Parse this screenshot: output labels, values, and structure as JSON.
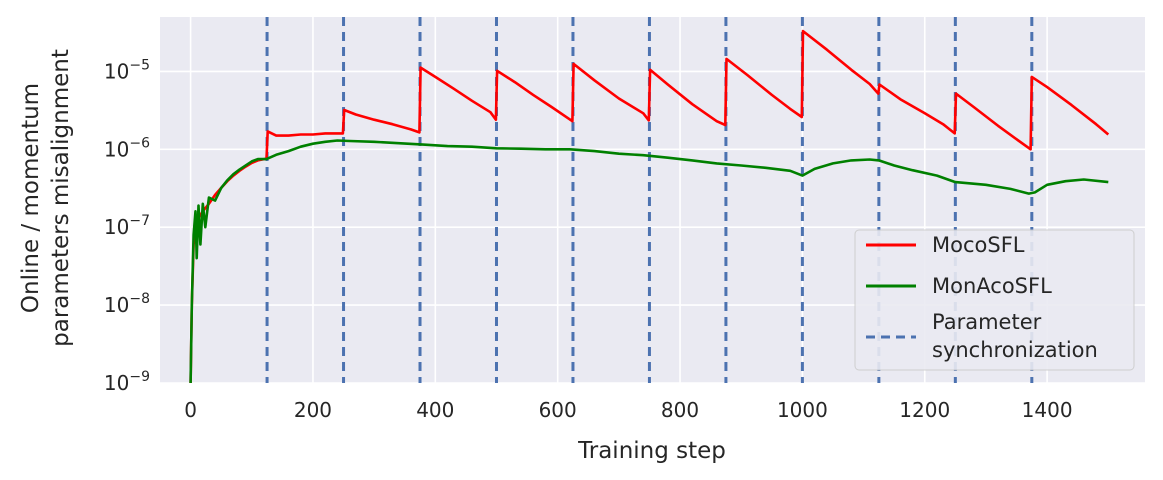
{
  "chart_data": {
    "type": "line",
    "title": "",
    "xlabel": "Training step",
    "ylabel_lines": [
      "Online / momentum",
      "parameters misalignment"
    ],
    "xlim": [
      -50,
      1560
    ],
    "ylim": [
      1e-09,
      5e-05
    ],
    "yscale": "log",
    "xticks": [
      0,
      200,
      400,
      600,
      800,
      1000,
      1200,
      1400
    ],
    "xtick_labels": [
      "0",
      "200",
      "400",
      "600",
      "800",
      "1000",
      "1200",
      "1400"
    ],
    "ytick_labels": [
      {
        "value": 1e-09,
        "base": "10",
        "exp": "−9"
      },
      {
        "value": 1e-08,
        "base": "10",
        "exp": "−8"
      },
      {
        "value": 1e-07,
        "base": "10",
        "exp": "−7"
      },
      {
        "value": 1e-06,
        "base": "10",
        "exp": "−6"
      },
      {
        "value": 1e-05,
        "base": "10",
        "exp": "−5"
      }
    ],
    "grid": true,
    "background": "#eaeaf2",
    "legend_position": "lower-right",
    "series": [
      {
        "name": "MocoSFL",
        "color": "#ff0000",
        "points": [
          [
            0,
            1e-09
          ],
          [
            2,
            1e-08
          ],
          [
            5,
            6e-08
          ],
          [
            10,
            1.2e-07
          ],
          [
            20,
            1.6e-07
          ],
          [
            30,
            2e-07
          ],
          [
            40,
            2.6e-07
          ],
          [
            50,
            3.2e-07
          ],
          [
            60,
            3.9e-07
          ],
          [
            70,
            4.6e-07
          ],
          [
            80,
            5.3e-07
          ],
          [
            90,
            6e-07
          ],
          [
            100,
            6.7e-07
          ],
          [
            110,
            7.2e-07
          ],
          [
            124,
            7.6e-07
          ],
          [
            126,
            1.7e-06
          ],
          [
            140,
            1.5e-06
          ],
          [
            160,
            1.5e-06
          ],
          [
            180,
            1.55e-06
          ],
          [
            200,
            1.55e-06
          ],
          [
            220,
            1.6e-06
          ],
          [
            240,
            1.6e-06
          ],
          [
            249,
            1.6e-06
          ],
          [
            251,
            3.2e-06
          ],
          [
            270,
            2.8e-06
          ],
          [
            300,
            2.4e-06
          ],
          [
            330,
            2.1e-06
          ],
          [
            360,
            1.8e-06
          ],
          [
            374,
            1.65e-06
          ],
          [
            376,
            1.12e-05
          ],
          [
            400,
            8.5e-06
          ],
          [
            430,
            6e-06
          ],
          [
            460,
            4.2e-06
          ],
          [
            490,
            3e-06
          ],
          [
            499,
            2.4e-06
          ],
          [
            501,
            1.02e-05
          ],
          [
            530,
            7.3e-06
          ],
          [
            560,
            5e-06
          ],
          [
            590,
            3.5e-06
          ],
          [
            624,
            2.3e-06
          ],
          [
            626,
            1.25e-05
          ],
          [
            660,
            7.7e-06
          ],
          [
            700,
            4.5e-06
          ],
          [
            740,
            2.9e-06
          ],
          [
            749,
            2.35e-06
          ],
          [
            751,
            1.05e-05
          ],
          [
            780,
            6.8e-06
          ],
          [
            820,
            3.8e-06
          ],
          [
            860,
            2.3e-06
          ],
          [
            874,
            2.05e-06
          ],
          [
            876,
            1.45e-05
          ],
          [
            910,
            9e-06
          ],
          [
            950,
            5e-06
          ],
          [
            980,
            3.3e-06
          ],
          [
            999,
            2.6e-06
          ],
          [
            1001,
            3.3e-05
          ],
          [
            1040,
            1.9e-05
          ],
          [
            1080,
            1.05e-05
          ],
          [
            1110,
            6.9e-06
          ],
          [
            1124,
            5.2e-06
          ],
          [
            1126,
            6.8e-06
          ],
          [
            1160,
            4.4e-06
          ],
          [
            1200,
            2.9e-06
          ],
          [
            1230,
            2.1e-06
          ],
          [
            1249,
            1.6e-06
          ],
          [
            1251,
            5.2e-06
          ],
          [
            1280,
            3.5e-06
          ],
          [
            1320,
            2e-06
          ],
          [
            1350,
            1.35e-06
          ],
          [
            1373,
            1e-06
          ],
          [
            1375,
            8.5e-06
          ],
          [
            1400,
            6.3e-06
          ],
          [
            1440,
            3.7e-06
          ],
          [
            1480,
            2.1e-06
          ],
          [
            1500,
            1.55e-06
          ]
        ]
      },
      {
        "name": "MonAcoSFL",
        "color": "#008000",
        "points": [
          [
            0,
            1e-09
          ],
          [
            2,
            1e-08
          ],
          [
            5,
            8e-08
          ],
          [
            8,
            1.6e-07
          ],
          [
            10,
            4e-08
          ],
          [
            13,
            1.9e-07
          ],
          [
            16,
            6e-08
          ],
          [
            20,
            2e-07
          ],
          [
            24,
            1e-07
          ],
          [
            30,
            2.4e-07
          ],
          [
            40,
            2.2e-07
          ],
          [
            50,
            3.2e-07
          ],
          [
            60,
            4e-07
          ],
          [
            70,
            4.8e-07
          ],
          [
            80,
            5.5e-07
          ],
          [
            90,
            6.2e-07
          ],
          [
            100,
            7e-07
          ],
          [
            110,
            7.5e-07
          ],
          [
            124,
            7.5e-07
          ],
          [
            140,
            8.5e-07
          ],
          [
            160,
            9.5e-07
          ],
          [
            180,
            1.08e-06
          ],
          [
            200,
            1.18e-06
          ],
          [
            220,
            1.25e-06
          ],
          [
            240,
            1.3e-06
          ],
          [
            260,
            1.28e-06
          ],
          [
            300,
            1.25e-06
          ],
          [
            340,
            1.2e-06
          ],
          [
            380,
            1.15e-06
          ],
          [
            420,
            1.1e-06
          ],
          [
            460,
            1.08e-06
          ],
          [
            500,
            1.03e-06
          ],
          [
            540,
            1.02e-06
          ],
          [
            580,
            1e-06
          ],
          [
            620,
            1e-06
          ],
          [
            660,
            9.5e-07
          ],
          [
            700,
            8.8e-07
          ],
          [
            740,
            8.4e-07
          ],
          [
            780,
            7.8e-07
          ],
          [
            820,
            7.2e-07
          ],
          [
            860,
            6.6e-07
          ],
          [
            900,
            6.2e-07
          ],
          [
            940,
            5.8e-07
          ],
          [
            980,
            5.3e-07
          ],
          [
            1000,
            4.6e-07
          ],
          [
            1020,
            5.6e-07
          ],
          [
            1050,
            6.6e-07
          ],
          [
            1080,
            7.2e-07
          ],
          [
            1110,
            7.4e-07
          ],
          [
            1125,
            7.2e-07
          ],
          [
            1150,
            6.2e-07
          ],
          [
            1180,
            5.4e-07
          ],
          [
            1220,
            4.6e-07
          ],
          [
            1250,
            3.8e-07
          ],
          [
            1300,
            3.5e-07
          ],
          [
            1340,
            3.1e-07
          ],
          [
            1370,
            2.7e-07
          ],
          [
            1380,
            2.8e-07
          ],
          [
            1400,
            3.5e-07
          ],
          [
            1430,
            3.9e-07
          ],
          [
            1460,
            4.1e-07
          ],
          [
            1500,
            3.8e-07
          ]
        ]
      },
      {
        "name": "Parameter synchronization",
        "color": "#4c72b0",
        "dashed": true,
        "x_values": [
          125,
          250,
          375,
          500,
          625,
          750,
          875,
          1000,
          1125,
          1250,
          1375
        ]
      }
    ],
    "legend": {
      "items": [
        {
          "label": "MocoSFL",
          "color": "#ff0000",
          "style": "solid"
        },
        {
          "label": "MonAcoSFL",
          "color": "#008000",
          "style": "solid"
        },
        {
          "label": "Parameter synchronization",
          "lines": [
            "Parameter",
            "synchronization"
          ],
          "color": "#4c72b0",
          "style": "dashed"
        }
      ]
    }
  }
}
